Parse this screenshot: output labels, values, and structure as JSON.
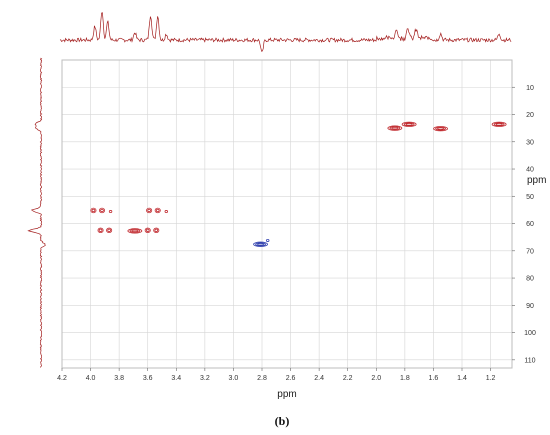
{
  "chart_data": {
    "type": "scatter",
    "subtype": "2D NMR HSQC contour plot",
    "caption": "(b)",
    "x_axis": {
      "label": "ppm",
      "range": [
        4.2,
        1.05
      ],
      "reversed": true,
      "ticks": [
        4.2,
        4.0,
        3.8,
        3.6,
        3.4,
        3.2,
        3.0,
        2.8,
        2.6,
        2.4,
        2.2,
        2.0,
        1.8,
        1.6,
        1.4,
        1.2
      ],
      "tick_labels": [
        "4.2",
        "4.0",
        "3.8",
        "3.6",
        "3.4",
        "3.2",
        "3.0",
        "2.8",
        "2.6",
        "2.4",
        "2.2",
        "2.0",
        "1.8",
        "1.6",
        "1.4",
        "1.2"
      ]
    },
    "y_axis": {
      "label": "ppm",
      "range": [
        0,
        113
      ],
      "ticks": [
        10,
        20,
        30,
        40,
        50,
        60,
        70,
        80,
        90,
        100,
        110
      ],
      "tick_labels": [
        "10",
        "20",
        "30",
        "40",
        "50",
        "60",
        "70",
        "80",
        "90",
        "100",
        "110"
      ],
      "position": "right"
    },
    "grid": true,
    "colors": {
      "positive": "#c0282d",
      "negative": "#2f3fae",
      "projection": "#a31d1d",
      "grid": "#d6d6d6"
    },
    "cross_peaks": [
      {
        "x": 3.98,
        "y": 55.2,
        "phase": "positive",
        "size": "medium"
      },
      {
        "x": 3.92,
        "y": 55.2,
        "phase": "positive",
        "size": "medium"
      },
      {
        "x": 3.86,
        "y": 55.6,
        "phase": "positive",
        "size": "small"
      },
      {
        "x": 3.93,
        "y": 62.5,
        "phase": "positive",
        "size": "medium"
      },
      {
        "x": 3.87,
        "y": 62.5,
        "phase": "positive",
        "size": "medium"
      },
      {
        "x": 3.69,
        "y": 62.7,
        "phase": "positive",
        "size": "elongated"
      },
      {
        "x": 3.59,
        "y": 55.2,
        "phase": "positive",
        "size": "medium"
      },
      {
        "x": 3.53,
        "y": 55.2,
        "phase": "positive",
        "size": "medium"
      },
      {
        "x": 3.47,
        "y": 55.6,
        "phase": "positive",
        "size": "small"
      },
      {
        "x": 3.6,
        "y": 62.5,
        "phase": "positive",
        "size": "medium"
      },
      {
        "x": 3.54,
        "y": 62.5,
        "phase": "positive",
        "size": "medium"
      },
      {
        "x": 2.81,
        "y": 67.6,
        "phase": "negative",
        "size": "elongated"
      },
      {
        "x": 2.76,
        "y": 66.2,
        "phase": "negative",
        "size": "small"
      },
      {
        "x": 1.87,
        "y": 25.0,
        "phase": "positive",
        "size": "elongated"
      },
      {
        "x": 1.77,
        "y": 23.6,
        "phase": "positive",
        "size": "elongated"
      },
      {
        "x": 1.55,
        "y": 25.2,
        "phase": "positive",
        "size": "elongated"
      },
      {
        "x": 1.14,
        "y": 23.6,
        "phase": "positive",
        "size": "elongated"
      }
    ],
    "projection_f2_peaks": [
      {
        "x": 3.97,
        "height": 0.45
      },
      {
        "x": 3.92,
        "height": 1.0
      },
      {
        "x": 3.88,
        "height": 0.6
      },
      {
        "x": 3.69,
        "height": 0.25
      },
      {
        "x": 3.58,
        "height": 0.85
      },
      {
        "x": 3.53,
        "height": 0.82
      },
      {
        "x": 3.47,
        "height": 0.2
      },
      {
        "x": 2.8,
        "height": -0.45
      },
      {
        "x": 1.86,
        "height": 0.3
      },
      {
        "x": 1.78,
        "height": 0.38
      },
      {
        "x": 1.72,
        "height": 0.3
      },
      {
        "x": 1.55,
        "height": 0.22
      },
      {
        "x": 1.14,
        "height": 0.22
      }
    ],
    "projection_f1_peaks": [
      {
        "y": 23.5,
        "height": 0.5
      },
      {
        "y": 25.0,
        "height": 0.45
      },
      {
        "y": 55.2,
        "height": 0.75
      },
      {
        "y": 62.6,
        "height": 1.0
      },
      {
        "y": 67.7,
        "height": -0.35
      }
    ]
  }
}
